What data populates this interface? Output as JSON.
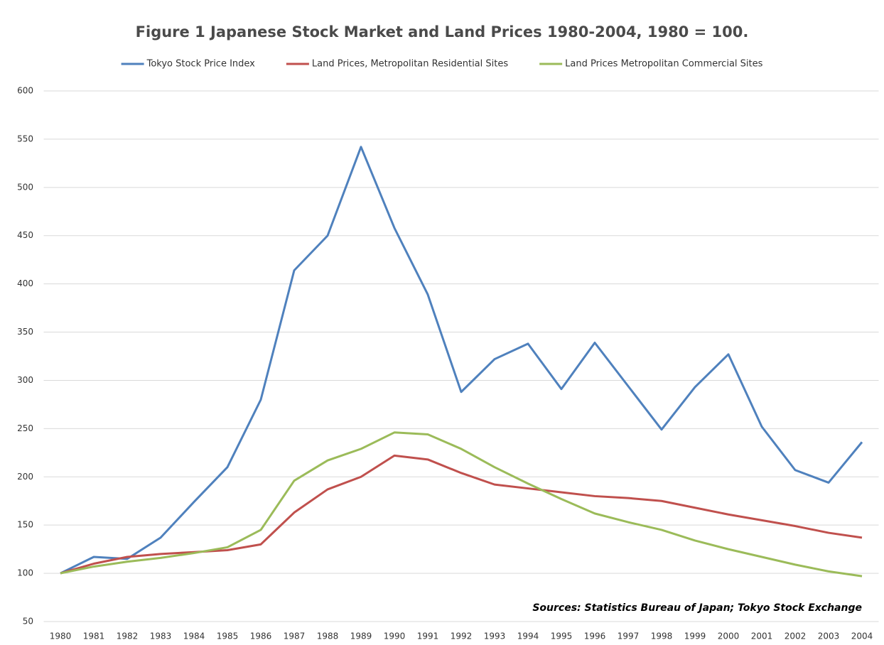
{
  "chart_data": {
    "type": "line",
    "title": "Figure 1   Japanese Stock Market and Land Prices 1980-2004, 1980 = 100.",
    "annotation": "Sources: Statistics Bureau of Japan; Tokyo Stock Exchange",
    "categories": [
      "1980",
      "1981",
      "1982",
      "1983",
      "1984",
      "1985",
      "1986",
      "1987",
      "1988",
      "1989",
      "1990",
      "1991",
      "1992",
      "1993",
      "1994",
      "1995",
      "1996",
      "1997",
      "1998",
      "1999",
      "2000",
      "2001",
      "2002",
      "2003",
      "2004"
    ],
    "series": [
      {
        "name": "Tokyo Stock Price Index",
        "color": "#4f81bd",
        "values": [
          100,
          117,
          115,
          137,
          174,
          210,
          280,
          414,
          450,
          542,
          458,
          389,
          288,
          322,
          338,
          291,
          339,
          294,
          249,
          293,
          327,
          252,
          207,
          194,
          236
        ]
      },
      {
        "name": "Land Prices, Metropolitan Residential Sites",
        "color": "#c0504d",
        "values": [
          100,
          110,
          117,
          120,
          122,
          124,
          130,
          163,
          187,
          200,
          222,
          218,
          204,
          192,
          188,
          184,
          180,
          178,
          175,
          168,
          161,
          155,
          149,
          142,
          137
        ]
      },
      {
        "name": "Land Prices Metropolitan Commercial Sites",
        "color": "#9bbb59",
        "values": [
          100,
          107,
          112,
          116,
          121,
          127,
          145,
          196,
          217,
          229,
          246,
          244,
          229,
          210,
          193,
          177,
          162,
          153,
          145,
          134,
          125,
          117,
          109,
          102,
          97
        ]
      }
    ],
    "ylim": [
      50,
      600
    ],
    "yticks": [
      50,
      100,
      150,
      200,
      250,
      300,
      350,
      400,
      450,
      500,
      550,
      600
    ],
    "grid": true,
    "legend": "top"
  }
}
